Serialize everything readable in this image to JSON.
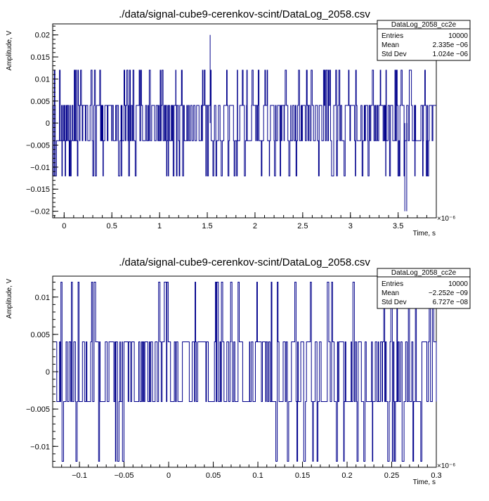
{
  "chart_data": [
    {
      "type": "line",
      "title": "./data/signal-cube9-cerenkov-scint/DataLog_2058.csv",
      "xlabel": "Time, s",
      "ylabel": "Amplitude, V",
      "x_exponent_label": "×10⁻⁶",
      "xlim": [
        -0.12,
        3.9
      ],
      "ylim": [
        -0.0215,
        0.0225
      ],
      "xticks": [
        "0",
        "0.5",
        "1",
        "1.5",
        "2",
        "2.5",
        "3",
        "3.5"
      ],
      "xtick_values": [
        0,
        0.5,
        1,
        1.5,
        2,
        2.5,
        3,
        3.5
      ],
      "yticks": [
        "−0.02",
        "−0.015",
        "−0.01",
        "−0.005",
        "0",
        "0.005",
        "0.01",
        "0.015",
        "0.02"
      ],
      "ytick_values": [
        -0.02,
        -0.015,
        -0.01,
        -0.005,
        0,
        0.005,
        0.01,
        0.015,
        0.02
      ],
      "series": [
        {
          "name": "DataLog_2058_cc2e",
          "color": "#00008b",
          "description_levels": [
            -0.012,
            -0.004,
            0.004,
            0.012
          ],
          "spikes": [
            {
              "x": 1.53,
              "y": 0.02
            },
            {
              "x": 3.57,
              "y": -0.02
            },
            {
              "x": 3.59,
              "y": -0.02
            }
          ]
        }
      ],
      "stats": {
        "name": "DataLog_2058_cc2e",
        "rows": [
          {
            "label": "Entries",
            "value": "10000"
          },
          {
            "label": "Mean",
            "value": "2.335e −06"
          },
          {
            "label": "Std Dev",
            "value": "1.024e −06"
          }
        ]
      }
    },
    {
      "type": "line",
      "title": "./data/signal-cube9-cerenkov-scint/DataLog_2058.csv",
      "xlabel": "Time, s",
      "ylabel": "Amplitude, V",
      "x_exponent_label": "×10⁻⁶",
      "xlim": [
        -0.13,
        0.3
      ],
      "ylim": [
        -0.0128,
        0.0128
      ],
      "xticks": [
        "−0.1",
        "−0.05",
        "0",
        "0.05",
        "0.1",
        "0.15",
        "0.2",
        "0.25",
        "0.3"
      ],
      "xtick_values": [
        -0.1,
        -0.05,
        0,
        0.05,
        0.1,
        0.15,
        0.2,
        0.25,
        0.3
      ],
      "yticks": [
        "−0.01",
        "−0.005",
        "0",
        "0.005",
        "0.01"
      ],
      "ytick_values": [
        -0.01,
        -0.005,
        0,
        0.005,
        0.01
      ],
      "series": [
        {
          "name": "DataLog_2058_cc2e",
          "color": "#00008b",
          "description_levels": [
            -0.012,
            -0.004,
            0.004,
            0.012
          ]
        }
      ],
      "stats": {
        "name": "DataLog_2058_cc2e",
        "rows": [
          {
            "label": "Entries",
            "value": "10000"
          },
          {
            "label": "Mean",
            "value": "−2.252e −09"
          },
          {
            "label": "Std Dev",
            "value": "6.727e −08"
          }
        ]
      }
    }
  ]
}
